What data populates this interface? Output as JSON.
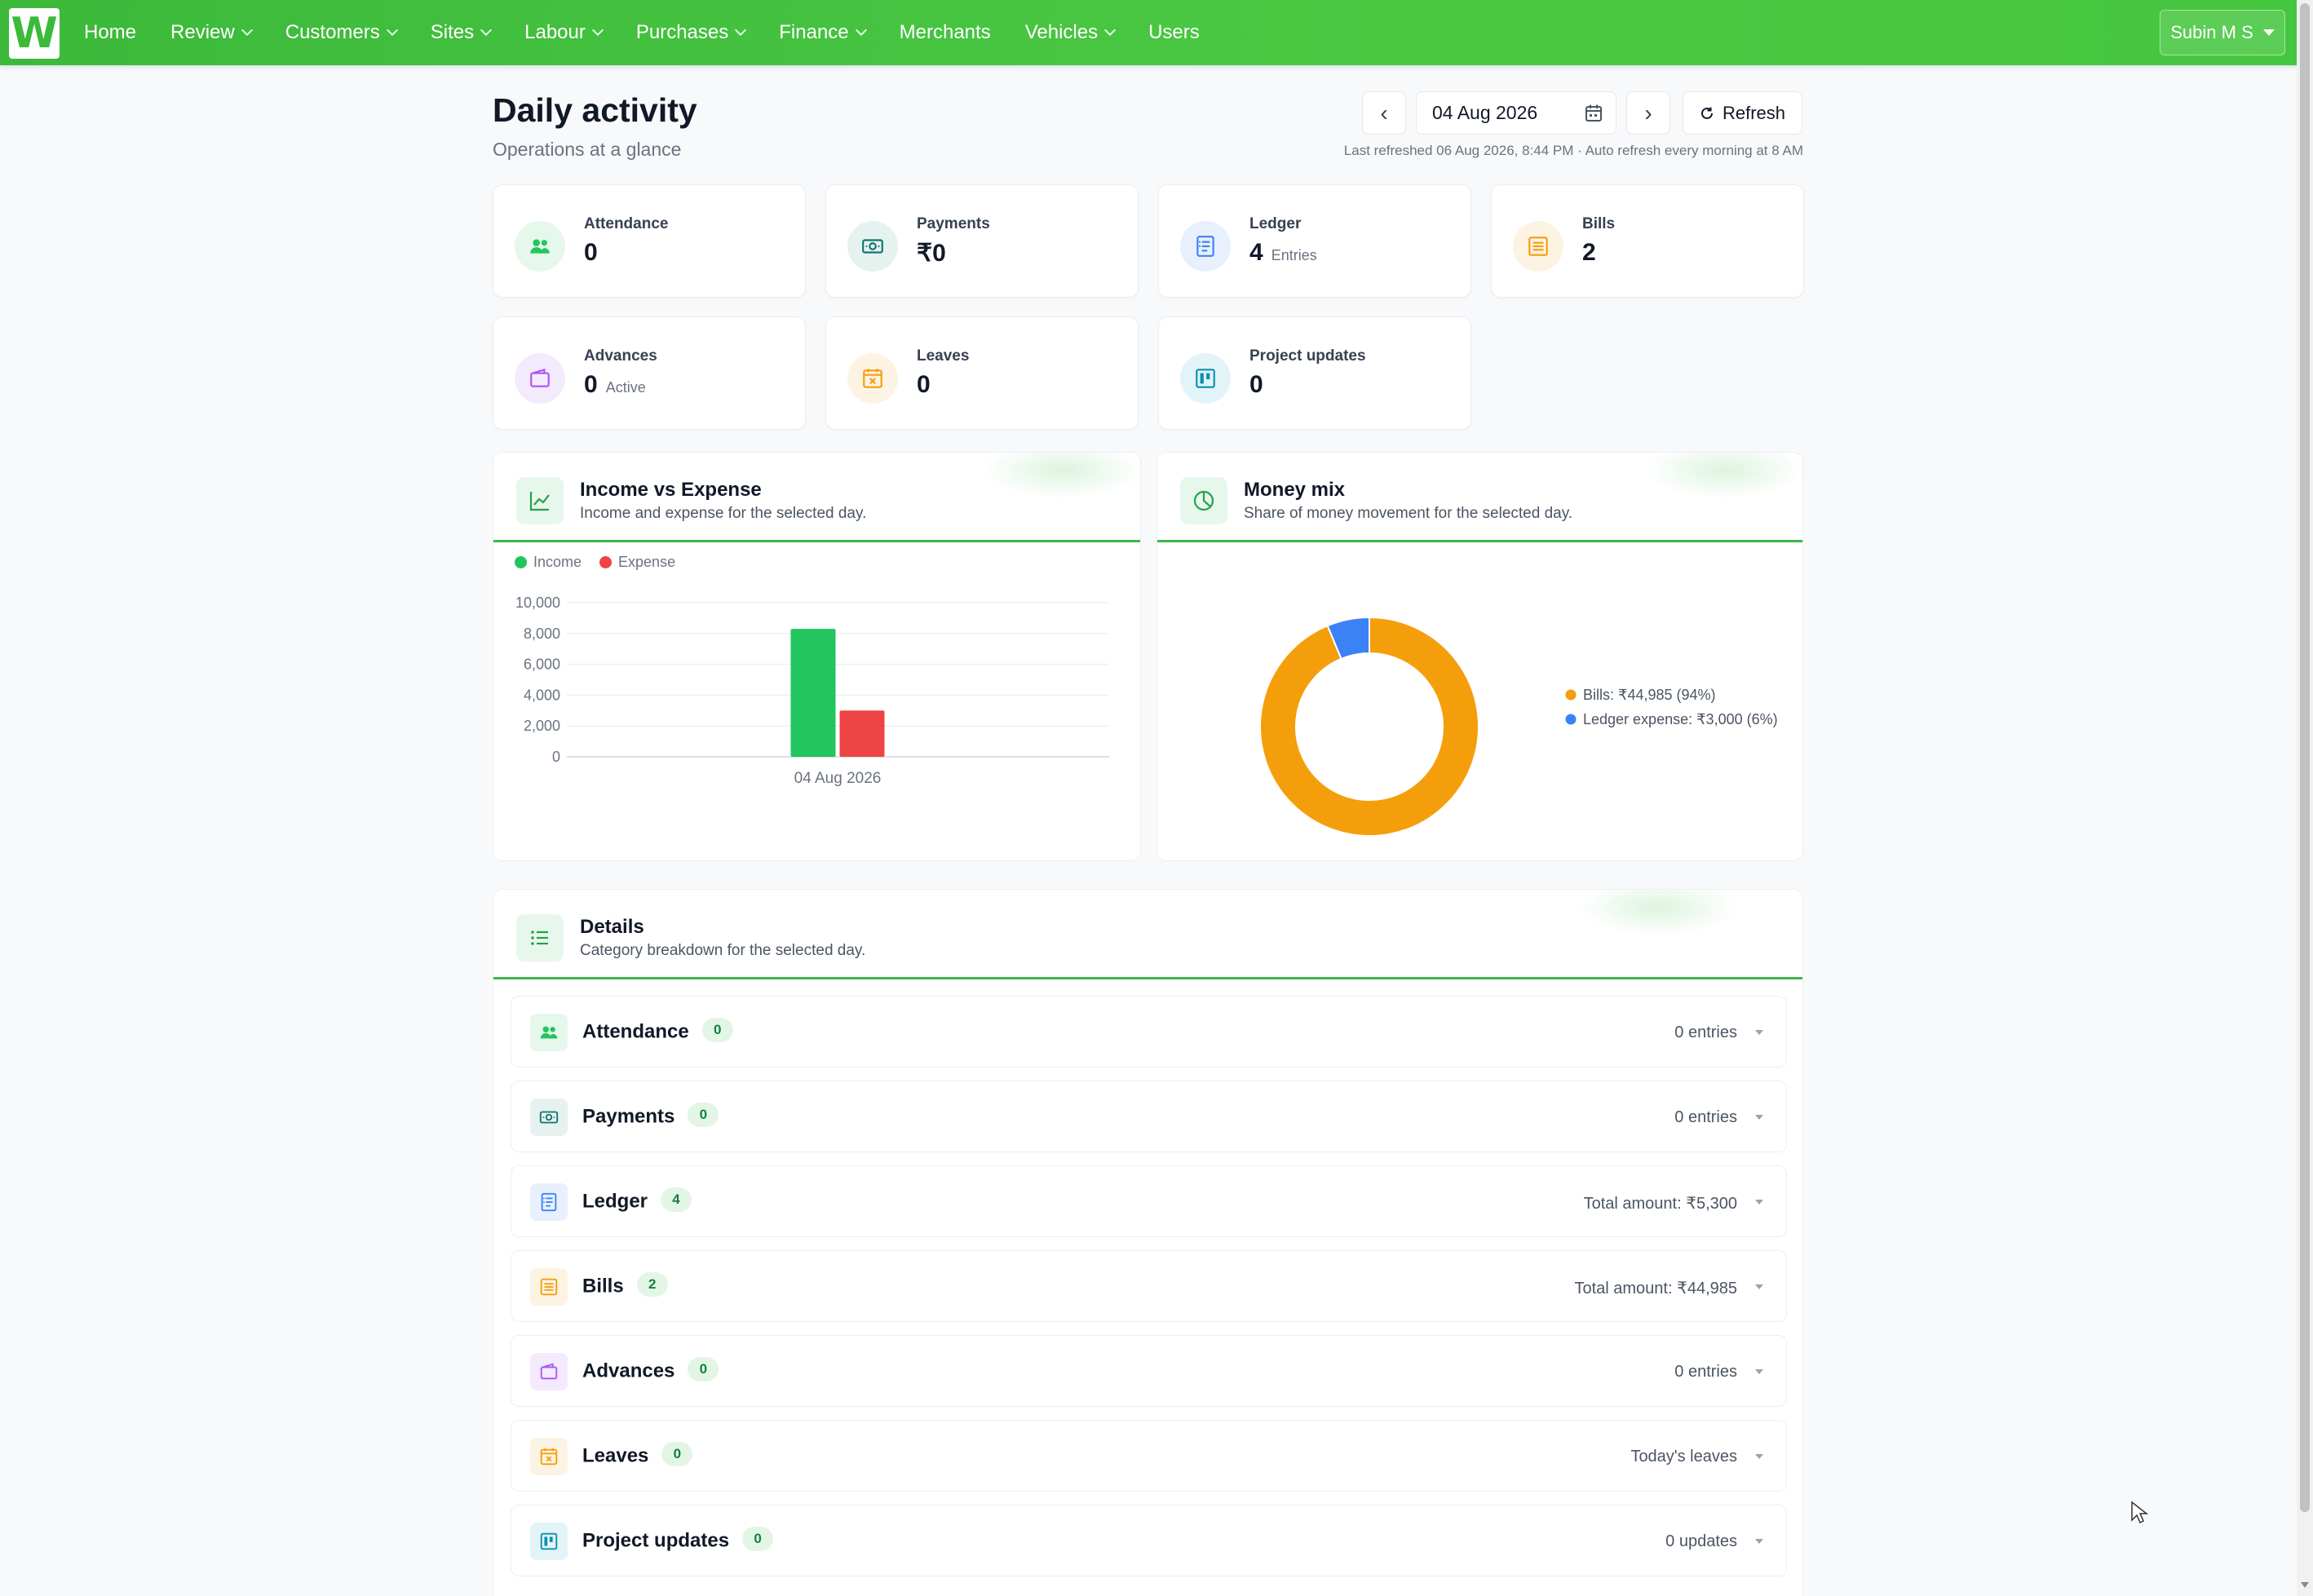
{
  "nav": {
    "brand": "W",
    "items": [
      {
        "label": "Home",
        "dropdown": false
      },
      {
        "label": "Review",
        "dropdown": true
      },
      {
        "label": "Customers",
        "dropdown": true
      },
      {
        "label": "Sites",
        "dropdown": true
      },
      {
        "label": "Labour",
        "dropdown": true
      },
      {
        "label": "Purchases",
        "dropdown": true
      },
      {
        "label": "Finance",
        "dropdown": true
      },
      {
        "label": "Merchants",
        "dropdown": false
      },
      {
        "label": "Vehicles",
        "dropdown": true
      },
      {
        "label": "Users",
        "dropdown": false
      }
    ],
    "user": "Subin M S"
  },
  "header": {
    "title": "Daily activity",
    "subtitle": "Operations at a glance",
    "date": "04 Aug 2026",
    "prev": "‹",
    "next": "›",
    "refresh_label": "Refresh",
    "last_refreshed": "Last refreshed 06 Aug 2026, 8:44 PM · Auto refresh every morning at 8 AM"
  },
  "stats": [
    {
      "label": "Attendance",
      "value": "0",
      "unit": "",
      "icon": "users-icon",
      "color": "#22c55e",
      "bg": "#e6f7ec"
    },
    {
      "label": "Payments",
      "value": "₹0",
      "unit": "",
      "icon": "cash-icon",
      "color": "#0f766e",
      "bg": "#e6f2ef"
    },
    {
      "label": "Ledger",
      "value": "4",
      "unit": "Entries",
      "icon": "ledger-icon",
      "color": "#3b82f6",
      "bg": "#e8effd"
    },
    {
      "label": "Bills",
      "value": "2",
      "unit": "",
      "icon": "bill-icon",
      "color": "#f59e0b",
      "bg": "#fdf3e3"
    },
    {
      "label": "Advances",
      "value": "0",
      "unit": "Active",
      "icon": "wallet-icon",
      "color": "#a855f7",
      "bg": "#f4eafd"
    },
    {
      "label": "Leaves",
      "value": "0",
      "unit": "",
      "icon": "calendar-x-icon",
      "color": "#f59e0b",
      "bg": "#fdf3e3"
    },
    {
      "label": "Project updates",
      "value": "0",
      "unit": "",
      "icon": "kanban-icon",
      "color": "#0891b2",
      "bg": "#e3f4f8"
    }
  ],
  "income_panel": {
    "title": "Income vs Expense",
    "subtitle": "Income and expense for the selected day.",
    "icon": "line-chart-icon"
  },
  "money_panel": {
    "title": "Money mix",
    "subtitle": "Share of money movement for the selected day.",
    "icon": "pie-chart-icon"
  },
  "chart_data": [
    {
      "type": "bar",
      "categories": [
        "04 Aug 2026"
      ],
      "series": [
        {
          "name": "Income",
          "values": [
            8300
          ],
          "color": "#22c55e"
        },
        {
          "name": "Expense",
          "values": [
            3000
          ],
          "color": "#ef4444"
        }
      ],
      "yticks": [
        "10,000",
        "8,000",
        "6,000",
        "4,000",
        "2,000",
        "0"
      ],
      "ylim": [
        0,
        10000
      ],
      "legend": "top-left",
      "grid": true
    },
    {
      "type": "pie",
      "donut": true,
      "slices": [
        {
          "label": "Bills: ₹44,985 (94%)",
          "value": 44985,
          "color": "#f59e0b"
        },
        {
          "label": "Ledger expense: ₹3,000 (6%)",
          "value": 3000,
          "color": "#3b82f6"
        }
      ],
      "legend": "right"
    }
  ],
  "details": {
    "title": "Details",
    "subtitle": "Category breakdown for the selected day.",
    "icon": "list-icon",
    "rows": [
      {
        "name": "Attendance",
        "count": "0",
        "right": "0 entries",
        "icon": "users-icon",
        "color": "#22c55e",
        "bg": "#e6f7ec"
      },
      {
        "name": "Payments",
        "count": "0",
        "right": "0 entries",
        "icon": "cash-icon",
        "color": "#0f766e",
        "bg": "#e6f2ef"
      },
      {
        "name": "Ledger",
        "count": "4",
        "right": "Total amount: ₹5,300",
        "icon": "ledger-icon",
        "color": "#3b82f6",
        "bg": "#e8effd"
      },
      {
        "name": "Bills",
        "count": "2",
        "right": "Total amount: ₹44,985",
        "icon": "bill-icon",
        "color": "#f59e0b",
        "bg": "#fdf3e3"
      },
      {
        "name": "Advances",
        "count": "0",
        "right": "0 entries",
        "icon": "wallet-icon",
        "color": "#a855f7",
        "bg": "#f4eafd"
      },
      {
        "name": "Leaves",
        "count": "0",
        "right": "Today's leaves",
        "icon": "calendar-x-icon",
        "color": "#f59e0b",
        "bg": "#fdf3e3"
      },
      {
        "name": "Project updates",
        "count": "0",
        "right": "0 updates",
        "icon": "kanban-icon",
        "color": "#0891b2",
        "bg": "#e3f4f8"
      }
    ]
  },
  "colors": {
    "accent": "#3cb93a",
    "income": "#22c55e",
    "expense": "#ef4444",
    "bills": "#f59e0b",
    "ledger": "#3b82f6"
  }
}
